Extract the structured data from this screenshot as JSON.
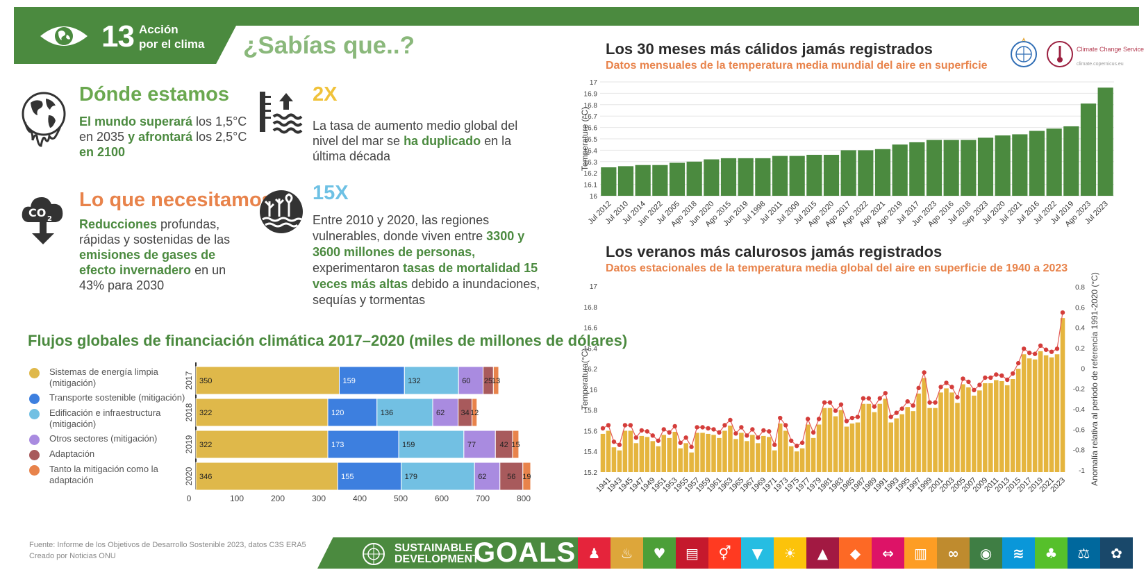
{
  "header": {
    "goal_number": "13",
    "goal_name_line1": "Acción",
    "goal_name_line2": "por el clima",
    "headline": "¿Sabías que..?",
    "band_color": "#4b8a3f"
  },
  "facts": {
    "where": {
      "title": "Dónde estamos",
      "t1": "El mundo superará",
      "t2": " los 1,5°C en 2035 ",
      "t3": "y afrontará",
      "t4": " los 2,5°C ",
      "t5": "en 2100",
      "icon": "melting-globe-icon"
    },
    "need": {
      "title": "Lo que necesitamos",
      "t1": "Reducciones",
      "t2": " profundas, rápidas y sostenidas de las ",
      "t3": "emisiones de gases de efecto invernadero",
      "t4": " en un 43% para 2030",
      "icon": "co2-cloud-icon"
    },
    "sea": {
      "title": "2X",
      "t1": "La tasa de aumento medio global del nivel del mar se ",
      "t2": "ha duplicado",
      "t3": " en la última década",
      "icon": "sea-level-icon"
    },
    "risk": {
      "title": "15X",
      "t1": "Entre 2010 y 2020, las regiones vulnerables, donde viven entre ",
      "t2": "3300 y 3600 millones de personas,",
      "t3": " experimentaron ",
      "t4": "tasas de mortalidad 15 veces más altas",
      "t5": " debido a inundaciones, sequías y tormentas",
      "icon": "flooded-trees-icon"
    }
  },
  "finance": {
    "title": "Flujos globales de financiación climática 2017–2020 (miles de millones de dólares)",
    "legend": [
      {
        "label": "Sistemas de energía limpia (mitigación)",
        "color": "#dfb84a"
      },
      {
        "label": "Transporte sostenible (mitigación)",
        "color": "#3d7fdf"
      },
      {
        "label": "Edificación e infraestructura (mitigación)",
        "color": "#72c0e3"
      },
      {
        "label": "Otros sectores (mitigación)",
        "color": "#a98be0"
      },
      {
        "label": "Adaptación",
        "color": "#a85a5c"
      },
      {
        "label": "Tanto la mitigación como la adaptación",
        "color": "#e8834b"
      }
    ]
  },
  "chart1": {
    "title": "Los 30 meses más cálidos jamás registrados",
    "subtitle": "Datos mensuales de la temperatura media mundial del aire en superficie",
    "color": "#4b8a3f"
  },
  "chart2": {
    "title": "Los veranos más calurosos jamás registrados",
    "subtitle": "Datos estacionales de la temperatura media global del aire en superficie de 1940 a 2023",
    "bar_color": "#e5b53e",
    "dot_color": "#d43d3a"
  },
  "logos": {
    "wmo": "wmo-logo",
    "ccs_name": "Climate Change Service",
    "ccs_url": "climate.copernicus.eu"
  },
  "footer": {
    "source_line1": "Fuente: Informe de los Objetivos de Desarrollo Sostenible 2023, datos C3S ERA5",
    "source_line2": "Creado por Noticias ONU",
    "sdg_line1": "SUSTAINABLE",
    "sdg_line2": "DEVELOPMENT",
    "goals": "GOALS",
    "tiles": [
      {
        "color": "#e5243b",
        "glyph": "♟"
      },
      {
        "color": "#dda63a",
        "glyph": "♨"
      },
      {
        "color": "#4c9f38",
        "glyph": "♥"
      },
      {
        "color": "#c5192d",
        "glyph": "▤"
      },
      {
        "color": "#ff3a21",
        "glyph": "⚥"
      },
      {
        "color": "#26bde2",
        "glyph": "▼"
      },
      {
        "color": "#fcc30b",
        "glyph": "☀"
      },
      {
        "color": "#a21942",
        "glyph": "▲"
      },
      {
        "color": "#fd6925",
        "glyph": "◆"
      },
      {
        "color": "#dd1367",
        "glyph": "⇔"
      },
      {
        "color": "#fd9d24",
        "glyph": "▥"
      },
      {
        "color": "#bf8b2e",
        "glyph": "∞"
      },
      {
        "color": "#3f7e44",
        "glyph": "◉"
      },
      {
        "color": "#0a97d9",
        "glyph": "≋"
      },
      {
        "color": "#56c02b",
        "glyph": "♣"
      },
      {
        "color": "#00689d",
        "glyph": "⚖"
      },
      {
        "color": "#19486a",
        "glyph": "✿"
      }
    ]
  },
  "chart_data": [
    {
      "type": "bar",
      "orientation": "horizontal-stacked",
      "categories": [
        "2017",
        "2018",
        "2019",
        "2020"
      ],
      "series": [
        {
          "name": "Sistemas de energía limpia (mitigación)",
          "values": [
            350,
            322,
            322,
            346
          ]
        },
        {
          "name": "Transporte sostenible (mitigación)",
          "values": [
            159,
            120,
            173,
            155
          ]
        },
        {
          "name": "Edificación e infraestructura (mitigación)",
          "values": [
            132,
            136,
            159,
            179
          ]
        },
        {
          "name": "Otros sectores (mitigación)",
          "values": [
            60,
            62,
            77,
            62
          ]
        },
        {
          "name": "Adaptación",
          "values": [
            25,
            34,
            42,
            56
          ]
        },
        {
          "name": "Tanto la mitigación como la adaptación",
          "values": [
            13,
            12,
            15,
            19
          ]
        }
      ],
      "xticks": [
        0,
        100,
        200,
        300,
        400,
        500,
        600,
        700,
        800
      ],
      "xlim": [
        0,
        800
      ]
    },
    {
      "type": "bar",
      "title": "Los 30 meses más cálidos jamás registrados",
      "ylabel": "Temperature (°C)",
      "ylim": [
        16,
        17
      ],
      "yticks": [
        16,
        16.1,
        16.2,
        16.3,
        16.4,
        16.5,
        16.6,
        16.7,
        16.8,
        16.9,
        17
      ],
      "categories": [
        "Jul 2012",
        "Jul 2010",
        "Jul 2014",
        "Jun 2022",
        "Jul 2005",
        "Ago 2018",
        "Jun 2020",
        "Ago 2015",
        "Jun 2019",
        "Jul 1998",
        "Jul 2011",
        "Jul 2009",
        "Jul 2015",
        "Ago 2020",
        "Ago 2017",
        "Ago 2022",
        "Ago 2021",
        "Ago 2019",
        "Jul 2017",
        "Jun 2023",
        "Ago 2016",
        "Jul 2018",
        "Sep 2023",
        "Jul 2020",
        "Jul 2021",
        "Jul 2016",
        "Jul 2022",
        "Jul 2019",
        "Ago 2023",
        "Jul 2023"
      ],
      "values": [
        16.25,
        16.26,
        16.27,
        16.27,
        16.29,
        16.3,
        16.32,
        16.33,
        16.33,
        16.33,
        16.35,
        16.35,
        16.36,
        16.36,
        16.4,
        16.4,
        16.41,
        16.45,
        16.47,
        16.49,
        16.49,
        16.49,
        16.51,
        16.53,
        16.54,
        16.57,
        16.59,
        16.61,
        16.81,
        16.95
      ]
    },
    {
      "type": "bar",
      "title": "Los veranos más calurosos jamás registrados",
      "ylabel": "Temperatura(°C)",
      "y2label": "Anomalía relativa al periodo de referencia 1991-2020 (°C)",
      "ylim": [
        15.2,
        17
      ],
      "yticks": [
        15.2,
        15.4,
        15.6,
        15.8,
        16,
        16.2,
        16.4,
        16.6,
        16.8,
        17
      ],
      "y2ticks": [
        -1,
        -0.8,
        -0.6,
        -0.4,
        -0.2,
        0,
        0.2,
        0.4,
        0.6,
        0.8
      ],
      "xticks": [
        "1941",
        "1943",
        "1945",
        "1947",
        "1949",
        "1951",
        "1953",
        "1955",
        "1957",
        "1959",
        "1961",
        "1963",
        "1965",
        "1967",
        "1969",
        "1971",
        "1973",
        "1975",
        "1977",
        "1979",
        "1981",
        "1983",
        "1985",
        "1987",
        "1989",
        "1991",
        "1993",
        "1995",
        "1997",
        "1999",
        "2001",
        "2003",
        "2005",
        "2007",
        "2009",
        "2011",
        "2013",
        "2015",
        "2017",
        "2019",
        "2021",
        "2023"
      ],
      "x": [
        1940,
        1941,
        1942,
        1943,
        1944,
        1945,
        1946,
        1947,
        1948,
        1949,
        1950,
        1951,
        1952,
        1953,
        1954,
        1955,
        1956,
        1957,
        1958,
        1959,
        1960,
        1961,
        1962,
        1963,
        1964,
        1965,
        1966,
        1967,
        1968,
        1969,
        1970,
        1971,
        1972,
        1973,
        1974,
        1975,
        1976,
        1977,
        1978,
        1979,
        1980,
        1981,
        1982,
        1983,
        1984,
        1985,
        1986,
        1987,
        1988,
        1989,
        1990,
        1991,
        1992,
        1993,
        1994,
        1995,
        1996,
        1997,
        1998,
        1999,
        2000,
        2001,
        2002,
        2003,
        2004,
        2005,
        2006,
        2007,
        2008,
        2009,
        2010,
        2011,
        2012,
        2013,
        2014,
        2015,
        2016,
        2017,
        2018,
        2019,
        2020,
        2021,
        2022,
        2023
      ],
      "values": [
        15.57,
        15.6,
        15.44,
        15.41,
        15.6,
        15.6,
        15.48,
        15.55,
        15.54,
        15.5,
        15.45,
        15.56,
        15.53,
        15.59,
        15.43,
        15.48,
        15.39,
        15.58,
        15.58,
        15.57,
        15.56,
        15.53,
        15.6,
        15.65,
        15.52,
        15.58,
        15.5,
        15.56,
        15.48,
        15.55,
        15.54,
        15.41,
        15.67,
        15.6,
        15.45,
        15.4,
        15.43,
        15.66,
        15.53,
        15.66,
        15.82,
        15.82,
        15.74,
        15.8,
        15.64,
        15.67,
        15.68,
        15.86,
        15.86,
        15.78,
        15.86,
        15.91,
        15.68,
        15.72,
        15.76,
        15.83,
        15.79,
        15.96,
        16.11,
        15.82,
        15.82,
        15.97,
        16.01,
        15.97,
        15.87,
        16.05,
        16.02,
        15.94,
        15.99,
        16.06,
        16.06,
        16.09,
        16.08,
        16.04,
        16.1,
        16.2,
        16.34,
        16.3,
        16.29,
        16.37,
        16.33,
        16.31,
        16.34,
        16.69
      ]
    }
  ]
}
